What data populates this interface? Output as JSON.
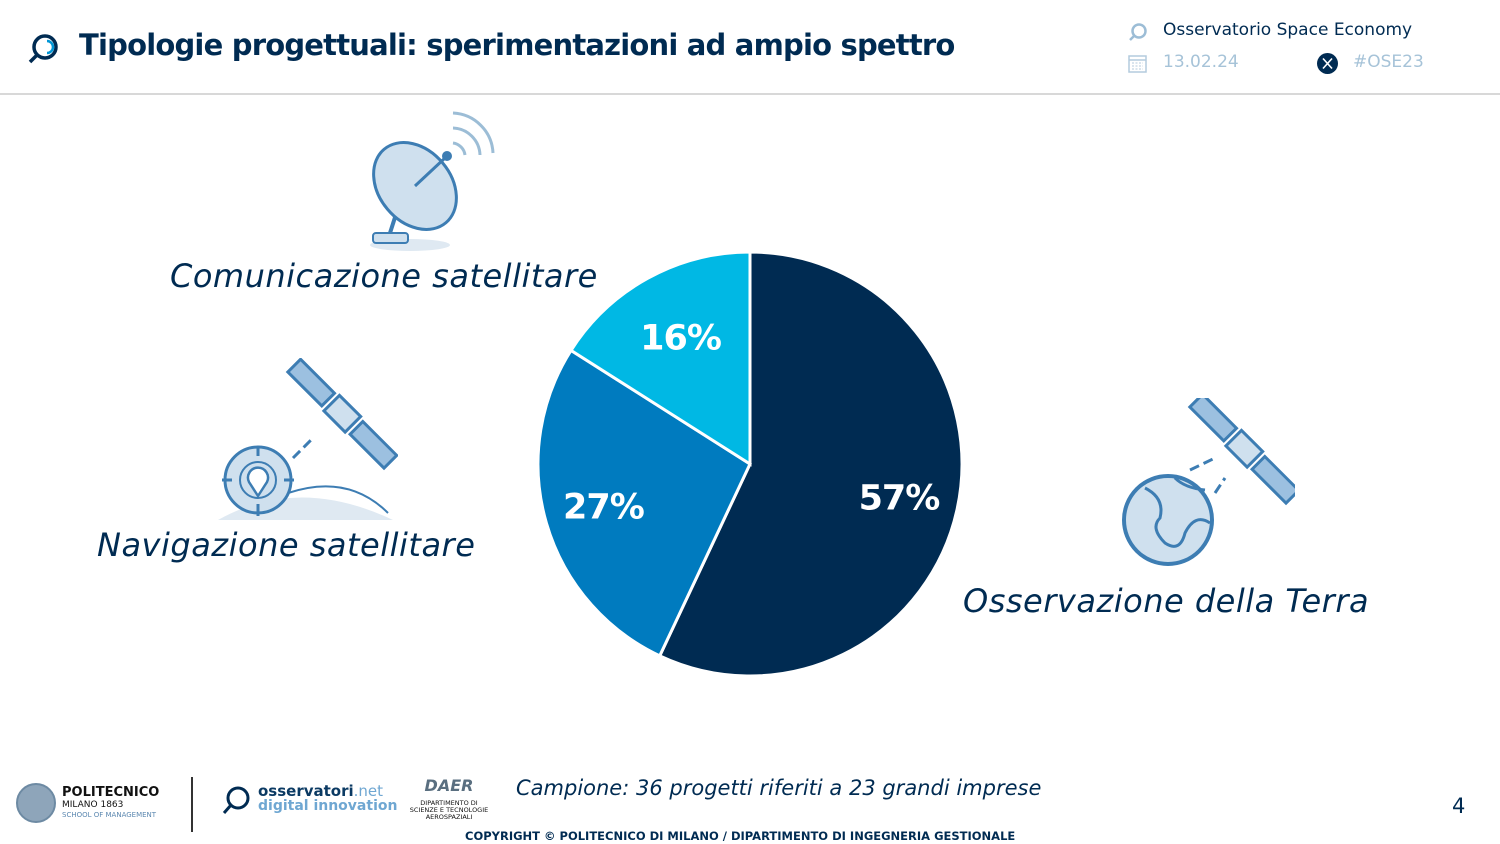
{
  "header": {
    "title": "Tipologie progettuali: sperimentazioni ad ampio spettro",
    "observatory": "Osservatorio Space Economy",
    "date": "13.02.24",
    "hashtag": "#OSE23"
  },
  "chart_data": {
    "type": "pie",
    "title": "Tipologie progettuali: sperimentazioni ad ampio spettro",
    "categories": [
      "Osservazione della Terra",
      "Navigazione satellitare",
      "Comunicazione satellitare"
    ],
    "values": [
      57,
      27,
      16
    ],
    "labels": [
      "57%",
      "27%",
      "16%"
    ],
    "colors": [
      "#002b52",
      "#007bbf",
      "#00b8e4"
    ]
  },
  "footer": {
    "sample": "Campione: 36 progetti riferiti a 23 grandi imprese",
    "copyright": "COPYRIGHT © POLITECNICO DI MILANO / DIPARTIMENTO DI INGEGNERIA GESTIONALE",
    "page": "4",
    "logo_polimi": [
      "POLITECNICO",
      "MILANO 1863",
      "SCHOOL OF MANAGEMENT"
    ],
    "logo_osservatori": [
      "osservatori",
      ".net",
      "digital innovation"
    ],
    "logo_dast": [
      "DIPARTIMENTO DI",
      "SCIENZE E TECNOLOGIE",
      "AEROSPAZIALI"
    ]
  }
}
